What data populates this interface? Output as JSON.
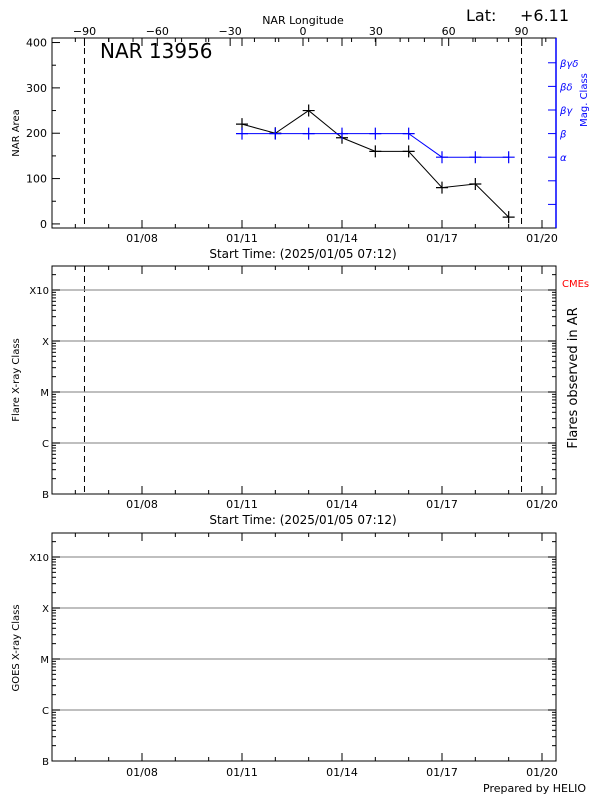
{
  "header": {
    "lat_label": "Lat:",
    "lat_value": "+6.11"
  },
  "colors": {
    "area": "#000000",
    "mag_class": "#0000ff",
    "cme": "#ff0000",
    "grid": "#999999"
  },
  "footer": {
    "credit": "Prepared by HELIO"
  },
  "chart_data": [
    {
      "type": "line",
      "title": "NAR 13956",
      "xlabel": "Start Time: (2025/01/05 07:12)",
      "ylabel": "NAR Area",
      "y2label": "Mag. Class",
      "top_xlabel": "NAR Longitude",
      "x_tick_labels": [
        "01/08",
        "01/11",
        "01/14",
        "01/17",
        "01/20"
      ],
      "top_tick_labels": [
        "-90",
        "-60",
        "-30",
        "0",
        "30",
        "60",
        "90"
      ],
      "y_tick_labels": [
        "0",
        "100",
        "200",
        "300",
        "400"
      ],
      "ylim": [
        0,
        400
      ],
      "y2_tick_labels": [
        "α",
        "β",
        "βγ",
        "βδ",
        "βγδ"
      ],
      "limb_longitudes": [
        -90,
        90
      ],
      "series": [
        {
          "name": "NAR Area",
          "x": [
            "01/11",
            "01/12",
            "01/13",
            "01/14",
            "01/15",
            "01/16",
            "01/17",
            "01/18",
            "01/19"
          ],
          "values": [
            220,
            200,
            250,
            190,
            160,
            160,
            80,
            88,
            15
          ]
        },
        {
          "name": "Mag. Class",
          "x": [
            "01/11",
            "01/12",
            "01/13",
            "01/14",
            "01/15",
            "01/16",
            "01/17",
            "01/18",
            "01/19"
          ],
          "values": [
            "β",
            "β",
            "β",
            "β",
            "β",
            "β",
            "α",
            "α",
            "α"
          ]
        }
      ]
    },
    {
      "type": "scatter",
      "xlabel": "Start Time: (2025/01/05 07:12)",
      "ylabel": "Flare X-ray Class",
      "y2label": "Flares observed in AR",
      "legend": "CMEs",
      "x_tick_labels": [
        "01/08",
        "01/11",
        "01/14",
        "01/17",
        "01/20"
      ],
      "y_tick_labels": [
        "B",
        "C",
        "M",
        "X",
        "X10"
      ],
      "y_scale": "log",
      "grid": true,
      "series": []
    },
    {
      "type": "line",
      "ylabel": "GOES X-ray Class",
      "x_tick_labels": [
        "01/08",
        "01/11",
        "01/14",
        "01/17",
        "01/20"
      ],
      "y_tick_labels": [
        "B",
        "C",
        "M",
        "X",
        "X10"
      ],
      "y_scale": "log",
      "grid": true,
      "series": []
    }
  ]
}
